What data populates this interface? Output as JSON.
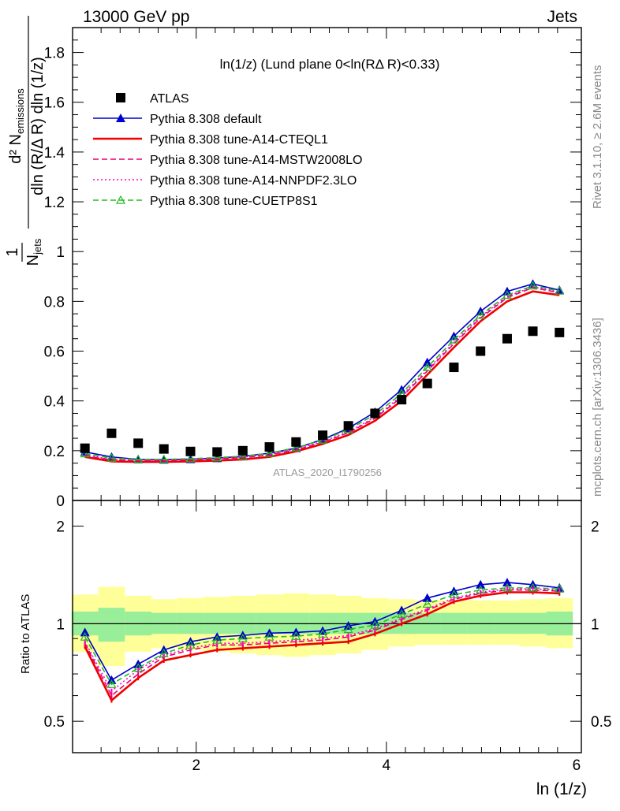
{
  "header": {
    "left": "13000 GeV pp",
    "right": "Jets"
  },
  "side": {
    "rivet": "Rivet 3.1.10, ≥ 2.6M events",
    "mcplots": "mcplots.cern.ch [arXiv:1306.3436]"
  },
  "chart_data": {
    "type": "scatter",
    "title": "ln(1/z) (Lund plane 0<ln(RΔ R)<0.33)",
    "analysis_label": "ATLAS_2020_I1790256",
    "xlabel": "ln (1/z)",
    "ylabel_main": "1/N_jets dln (R/Δ R) dln (1/z) d²N_emissions",
    "ylabel_ratio": "Ratio to ATLAS",
    "xlim": [
      0.7,
      6.05
    ],
    "ylim_main": [
      0,
      1.9
    ],
    "ylim_ratio": [
      0.4,
      2.4
    ],
    "ratio_log_scale": true,
    "x_ticks": [
      2,
      4,
      6
    ],
    "y_ticks_main": [
      0,
      0.2,
      0.4,
      0.6,
      0.8,
      1,
      1.2,
      1.4,
      1.6,
      1.8
    ],
    "y_ticks_ratio": [
      0.5,
      1,
      2
    ],
    "legend_position": "top-left",
    "x": [
      0.83,
      1.11,
      1.39,
      1.66,
      1.94,
      2.22,
      2.49,
      2.77,
      3.05,
      3.33,
      3.6,
      3.88,
      4.16,
      4.43,
      4.71,
      4.99,
      5.27,
      5.54,
      5.82
    ],
    "series": [
      {
        "name": "ATLAS",
        "color": "#000000",
        "marker": "square",
        "line": "none",
        "values": [
          0.21,
          0.27,
          0.23,
          0.207,
          0.197,
          0.195,
          0.2,
          0.215,
          0.235,
          0.262,
          0.3,
          0.35,
          0.405,
          0.47,
          0.535,
          0.6,
          0.65,
          0.68,
          0.675
        ]
      },
      {
        "name": "Pythia 8.308 default",
        "color": "#0000cc",
        "marker": "triangle",
        "line": "solid",
        "values": [
          0.195,
          0.175,
          0.165,
          0.164,
          0.166,
          0.17,
          0.177,
          0.19,
          0.21,
          0.245,
          0.29,
          0.355,
          0.445,
          0.555,
          0.66,
          0.76,
          0.84,
          0.87,
          0.845
        ]
      },
      {
        "name": "Pythia 8.308 tune-A14-CTEQL1",
        "color": "#ee0000",
        "marker": "none",
        "line": "solid",
        "values": [
          0.175,
          0.157,
          0.155,
          0.155,
          0.157,
          0.16,
          0.165,
          0.175,
          0.197,
          0.227,
          0.263,
          0.32,
          0.4,
          0.505,
          0.615,
          0.72,
          0.8,
          0.84,
          0.825
        ]
      },
      {
        "name": "Pythia 8.308 tune-A14-MSTW2008LO",
        "color": "#e60073",
        "marker": "none",
        "line": "dashed",
        "values": [
          0.18,
          0.163,
          0.16,
          0.16,
          0.163,
          0.167,
          0.172,
          0.183,
          0.203,
          0.234,
          0.272,
          0.33,
          0.415,
          0.52,
          0.63,
          0.733,
          0.815,
          0.855,
          0.835
        ]
      },
      {
        "name": "Pythia 8.308 tune-A14-NNPDF2.3LO",
        "color": "#ff00cc",
        "marker": "none",
        "line": "dotted",
        "values": [
          0.183,
          0.165,
          0.162,
          0.162,
          0.165,
          0.169,
          0.174,
          0.185,
          0.206,
          0.237,
          0.276,
          0.335,
          0.42,
          0.525,
          0.635,
          0.738,
          0.82,
          0.858,
          0.838
        ]
      },
      {
        "name": "Pythia 8.308 tune-CUETP8S1",
        "color": "#22bb22",
        "marker": "triangle-open",
        "line": "dashed",
        "values": [
          0.188,
          0.17,
          0.165,
          0.165,
          0.168,
          0.172,
          0.178,
          0.19,
          0.212,
          0.243,
          0.285,
          0.345,
          0.43,
          0.535,
          0.645,
          0.745,
          0.825,
          0.862,
          0.842
        ]
      }
    ],
    "ratios": [
      {
        "name": "Pythia 8.308 default",
        "values": [
          0.94,
          0.67,
          0.75,
          0.83,
          0.88,
          0.91,
          0.92,
          0.935,
          0.94,
          0.95,
          0.985,
          1.015,
          1.1,
          1.2,
          1.26,
          1.32,
          1.34,
          1.32,
          1.29
        ]
      },
      {
        "name": "Pythia 8.308 tune-A14-CTEQL1",
        "values": [
          0.85,
          0.58,
          0.68,
          0.77,
          0.8,
          0.83,
          0.84,
          0.85,
          0.86,
          0.87,
          0.88,
          0.93,
          1.0,
          1.07,
          1.17,
          1.22,
          1.25,
          1.25,
          1.24
        ]
      },
      {
        "name": "Pythia 8.308 tune-A14-MSTW2008LO",
        "values": [
          0.87,
          0.6,
          0.7,
          0.79,
          0.83,
          0.86,
          0.86,
          0.87,
          0.88,
          0.89,
          0.91,
          0.955,
          1.03,
          1.1,
          1.19,
          1.24,
          1.27,
          1.27,
          1.26
        ]
      },
      {
        "name": "Pythia 8.308 tune-A14-NNPDF2.3LO",
        "values": [
          0.88,
          0.62,
          0.72,
          0.8,
          0.84,
          0.87,
          0.87,
          0.88,
          0.89,
          0.9,
          0.92,
          0.965,
          1.04,
          1.11,
          1.2,
          1.25,
          1.28,
          1.28,
          1.27
        ]
      },
      {
        "name": "Pythia 8.308 tune-CUETP8S1",
        "values": [
          0.91,
          0.65,
          0.73,
          0.81,
          0.86,
          0.89,
          0.9,
          0.91,
          0.915,
          0.93,
          0.96,
          0.99,
          1.07,
          1.15,
          1.23,
          1.27,
          1.29,
          1.29,
          1.28
        ]
      }
    ],
    "uncertainty_bands": {
      "inner": [
        [
          0.92,
          1.09
        ],
        [
          0.88,
          1.12
        ],
        [
          0.92,
          1.09
        ],
        [
          0.93,
          1.08
        ],
        [
          0.93,
          1.08
        ],
        [
          0.93,
          1.08
        ],
        [
          0.93,
          1.08
        ],
        [
          0.93,
          1.08
        ],
        [
          0.93,
          1.08
        ],
        [
          0.93,
          1.08
        ],
        [
          0.93,
          1.08
        ],
        [
          0.93,
          1.08
        ],
        [
          0.93,
          1.08
        ],
        [
          0.93,
          1.08
        ],
        [
          0.93,
          1.08
        ],
        [
          0.93,
          1.08
        ],
        [
          0.93,
          1.08
        ],
        [
          0.93,
          1.08
        ],
        [
          0.92,
          1.09
        ]
      ],
      "outer": [
        [
          0.82,
          1.23
        ],
        [
          0.74,
          1.3
        ],
        [
          0.82,
          1.22
        ],
        [
          0.84,
          1.19
        ],
        [
          0.83,
          1.2
        ],
        [
          0.82,
          1.21
        ],
        [
          0.81,
          1.22
        ],
        [
          0.8,
          1.23
        ],
        [
          0.79,
          1.24
        ],
        [
          0.8,
          1.23
        ],
        [
          0.81,
          1.22
        ],
        [
          0.83,
          1.2
        ],
        [
          0.85,
          1.19
        ],
        [
          0.86,
          1.18
        ],
        [
          0.86,
          1.18
        ],
        [
          0.86,
          1.18
        ],
        [
          0.86,
          1.18
        ],
        [
          0.85,
          1.19
        ],
        [
          0.84,
          1.2
        ]
      ]
    },
    "band_colors": {
      "inner": "#99ee99",
      "outer": "#ffff99"
    }
  }
}
